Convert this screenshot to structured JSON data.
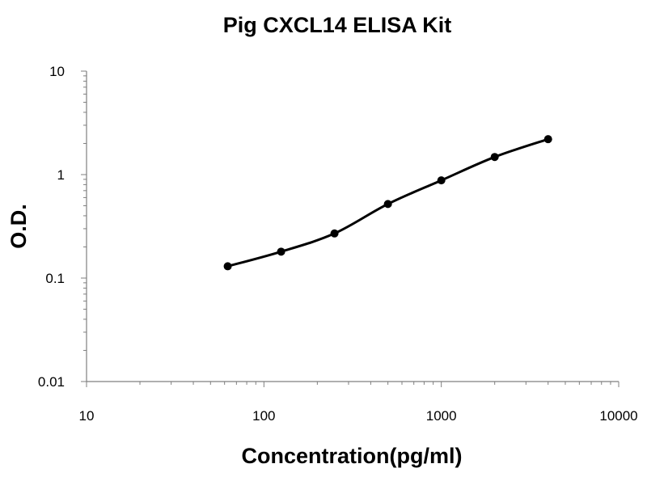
{
  "chart_data": {
    "type": "line",
    "title": "Pig CXCL14 ELISA Kit",
    "xlabel": "Concentration(pg/ml)",
    "ylabel": "O.D.",
    "x_scale": "log",
    "y_scale": "log",
    "xlim": [
      10,
      10000
    ],
    "ylim": [
      0.01,
      10
    ],
    "x_ticks": [
      10,
      100,
      1000,
      10000
    ],
    "x_tick_labels": [
      "10",
      "100",
      "1000",
      "10000"
    ],
    "y_ticks": [
      0.01,
      0.1,
      1,
      10
    ],
    "y_tick_labels": [
      "0.01",
      "0.1",
      "1",
      "10"
    ],
    "grid": false,
    "series": [
      {
        "x": [
          62.5,
          125,
          250,
          500,
          1000,
          2000,
          4000
        ],
        "y": [
          0.13,
          0.18,
          0.27,
          0.52,
          0.88,
          1.48,
          2.2
        ],
        "color": "#000000",
        "marker": "circle"
      }
    ]
  }
}
